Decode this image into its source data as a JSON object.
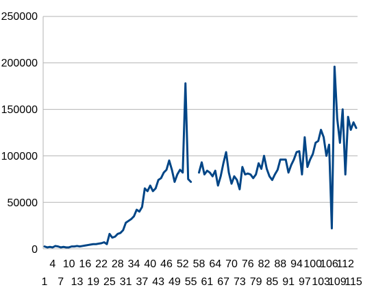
{
  "chart_data": {
    "type": "line",
    "title": "",
    "xlabel": "",
    "ylabel": "",
    "grid": true,
    "legend": "none",
    "ylim": [
      0,
      250000
    ],
    "y_ticks": [
      "0",
      "50000",
      "100000",
      "150000",
      "200000",
      "250000"
    ],
    "x_tick_row1": [
      "1",
      "7",
      "13",
      "19",
      "25",
      "31",
      "37",
      "43",
      "49",
      "55",
      "61",
      "67",
      "73",
      "79",
      "85",
      "91",
      "97",
      "103",
      "109",
      "115"
    ],
    "x_tick_row2": [
      "4",
      "10",
      "16",
      "22",
      "28",
      "34",
      "40",
      "46",
      "52",
      "58",
      "64",
      "70",
      "76",
      "82",
      "88",
      "94",
      "100",
      "106",
      "112"
    ],
    "line_color": "#004586",
    "series": [
      {
        "x": [
          1,
          2,
          3,
          4,
          5,
          6,
          7,
          8,
          9,
          10,
          11,
          12,
          13,
          14,
          15,
          16,
          17,
          18,
          19,
          20,
          21,
          22,
          23,
          24,
          25,
          26,
          27,
          28,
          29,
          30,
          31,
          32,
          33,
          34,
          35,
          36,
          37,
          38,
          39,
          40,
          41,
          42,
          43,
          44,
          45,
          46,
          47,
          48,
          49,
          50,
          51,
          52,
          53,
          54,
          55,
          56,
          57,
          58,
          59,
          60,
          61,
          62,
          63,
          64,
          65,
          66,
          67,
          68,
          69,
          70,
          71,
          72,
          73,
          74,
          75,
          76,
          77,
          78,
          79,
          80,
          81,
          82,
          83,
          84,
          85,
          86,
          87,
          88,
          89,
          90,
          91,
          92,
          93,
          94,
          95,
          96,
          97,
          98,
          99,
          100,
          101,
          102,
          103,
          104,
          105,
          106,
          107,
          108,
          109,
          110,
          111,
          112,
          113,
          114,
          115,
          116
        ],
        "values": [
          2500,
          1500,
          2000,
          1500,
          3000,
          2500,
          1500,
          2000,
          1500,
          1500,
          2500,
          2500,
          3000,
          2500,
          3000,
          3500,
          4000,
          4500,
          5000,
          5000,
          5500,
          6000,
          7000,
          5000,
          16000,
          12000,
          13000,
          16000,
          17000,
          20000,
          28000,
          30000,
          32000,
          35000,
          42000,
          40000,
          45000,
          65000,
          62000,
          68000,
          62000,
          65000,
          74000,
          76000,
          82000,
          85000,
          95000,
          85000,
          72000,
          80000,
          85000,
          82000,
          178000,
          75000,
          72000,
          null,
          null,
          82000,
          93000,
          80000,
          84000,
          82000,
          78000,
          84000,
          68000,
          78000,
          92000,
          104000,
          82000,
          70000,
          78000,
          74000,
          64000,
          88000,
          80000,
          81000,
          80000,
          76000,
          80000,
          92000,
          86000,
          100000,
          86000,
          78000,
          74000,
          80000,
          85000,
          96000,
          96000,
          96000,
          82000,
          90000,
          96000,
          104000,
          105000,
          80000,
          120000,
          88000,
          96000,
          102000,
          114000,
          116000,
          128000,
          120000,
          100000,
          112000,
          22000,
          196000,
          140000,
          114000,
          150000,
          80000,
          142000,
          128000,
          136000,
          130000
        ]
      }
    ]
  }
}
